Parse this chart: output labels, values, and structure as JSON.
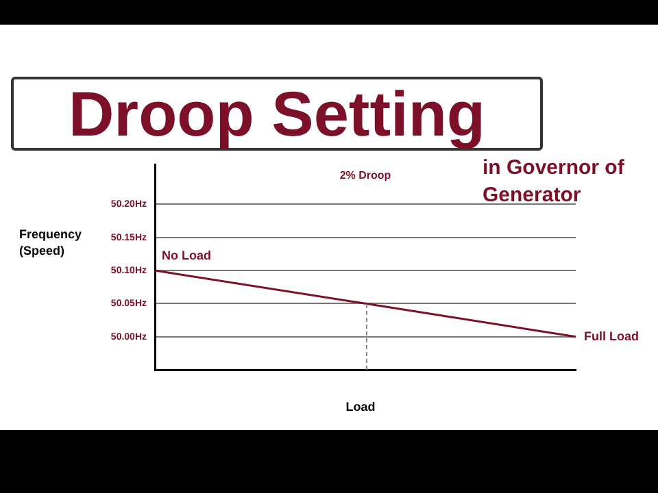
{
  "chart_data": {
    "type": "line",
    "title": "Droop Setting",
    "subtitle": "in Governor of Generator",
    "xlabel": "Load",
    "ylabel": "Frequency (Speed)",
    "categories": [
      null,
      null,
      null
    ],
    "series": [
      {
        "color": "#7b1028",
        "values": [
          50.1,
          50.05,
          50.0
        ],
        "value_labels": [
          "No Load",
          null,
          "Full Load"
        ]
      }
    ],
    "ylim": [
      49.95,
      50.26
    ],
    "yticks": [
      {
        "value": 50.0,
        "label": "50.00Hz"
      },
      {
        "value": 50.05,
        "label": "50.05Hz"
      },
      {
        "value": 50.1,
        "label": "50.10Hz"
      },
      {
        "value": 50.15,
        "label": "50.15Hz"
      },
      {
        "value": 50.2,
        "label": "50.20Hz"
      }
    ],
    "tick_labels": "y",
    "grid": "y",
    "legend": false,
    "marker": "none",
    "line_style": "solid",
    "annotations": [
      "2% Droop"
    ]
  }
}
